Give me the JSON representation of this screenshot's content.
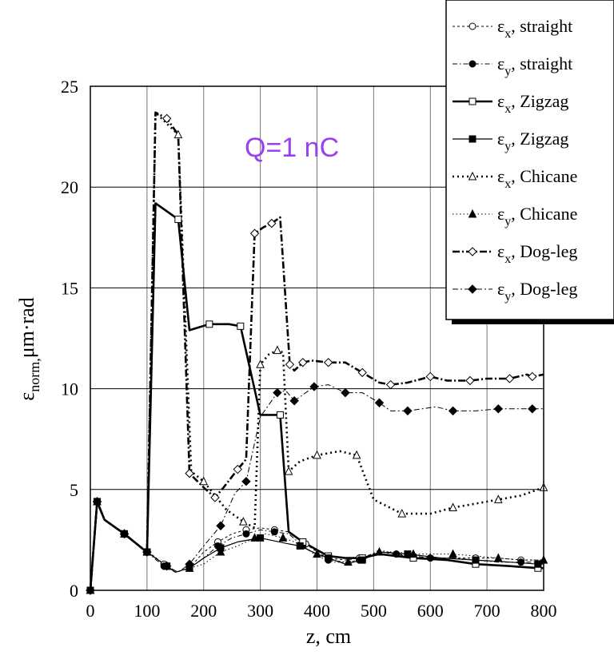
{
  "chart_data": {
    "type": "line",
    "title": "",
    "annotation": "Q=1 nC",
    "annotation_color": "#9a40ee",
    "xlabel": "z, cm",
    "ylabel_prefix": "ε",
    "ylabel_sub": "norm,",
    "ylabel_suffix": "μm·rad",
    "xlim": [
      0,
      800
    ],
    "ylim": [
      0,
      25
    ],
    "xticks": [
      "0",
      "100",
      "200",
      "300",
      "400",
      "500",
      "600",
      "700",
      "800"
    ],
    "yticks": [
      "0",
      "5",
      "10",
      "15",
      "20",
      "25"
    ],
    "grid": true,
    "legend_position": "top-right",
    "series": [
      {
        "name_sym": "ε",
        "name_sub": "x",
        "name_rest": ", straight",
        "color": "#000000",
        "dash": "3,3",
        "width": 1,
        "marker": "circle-open",
        "x": [
          0,
          12,
          25,
          60,
          95,
          100,
          112,
          130,
          150,
          175,
          200,
          225,
          250,
          275,
          300,
          325,
          350,
          380,
          400,
          420,
          450,
          475,
          510,
          540,
          570,
          600,
          640,
          680,
          720,
          760,
          800
        ],
        "y": [
          0,
          4.4,
          3.5,
          2.8,
          2.0,
          1.9,
          1.7,
          1.3,
          0.9,
          1.1,
          1.9,
          2.4,
          2.8,
          3.0,
          3.1,
          3.0,
          2.9,
          2.3,
          1.9,
          1.6,
          1.5,
          1.6,
          1.9,
          1.8,
          1.6,
          1.6,
          1.6,
          1.6,
          1.6,
          1.5,
          1.5
        ]
      },
      {
        "name_sym": "ε",
        "name_sub": "y",
        "name_rest": ", straight",
        "color": "#000000",
        "dash": "6,3,1.5,3",
        "width": 1,
        "marker": "circle-filled",
        "x": [
          0,
          12,
          25,
          60,
          95,
          100,
          112,
          130,
          150,
          175,
          200,
          225,
          250,
          275,
          300,
          325,
          350,
          375,
          400,
          420,
          450,
          475,
          510,
          540,
          570,
          600,
          640,
          680,
          720,
          760,
          800
        ],
        "y": [
          0,
          4.4,
          3.5,
          2.8,
          2.0,
          1.9,
          1.6,
          1.2,
          0.9,
          1.1,
          1.6,
          2.2,
          2.6,
          2.8,
          3.0,
          2.9,
          2.8,
          2.2,
          1.7,
          1.5,
          1.4,
          1.5,
          2.0,
          1.8,
          1.7,
          1.6,
          1.6,
          1.5,
          1.4,
          1.4,
          1.4
        ]
      },
      {
        "name_sym": "ε",
        "name_sub": "x",
        "name_rest": ", Zigzag",
        "color": "#000000",
        "dash": "",
        "width": 2.6,
        "marker": "square-open",
        "x": [
          0,
          12,
          25,
          60,
          95,
          100,
          115,
          155,
          175,
          210,
          245,
          265,
          300,
          335,
          350,
          375,
          400,
          420,
          450,
          480,
          510,
          570,
          630,
          680,
          740,
          790,
          800
        ],
        "y": [
          0,
          4.4,
          3.5,
          2.8,
          2.0,
          1.9,
          19.2,
          18.4,
          12.9,
          13.2,
          13.2,
          13.1,
          8.7,
          8.7,
          2.9,
          2.4,
          2.0,
          1.7,
          1.6,
          1.6,
          1.8,
          1.6,
          1.5,
          1.3,
          1.2,
          1.1,
          1.1
        ]
      },
      {
        "name_sym": "ε",
        "name_sub": "y",
        "name_rest": ", Zigzag",
        "color": "#000000",
        "dash": "",
        "width": 1.2,
        "marker": "square-filled",
        "x": [
          0,
          12,
          25,
          60,
          95,
          100,
          115,
          135,
          150,
          175,
          200,
          230,
          260,
          300,
          350,
          370,
          400,
          420,
          450,
          480,
          510,
          560,
          620,
          680,
          740,
          790,
          800
        ],
        "y": [
          0,
          4.4,
          3.5,
          2.8,
          2.0,
          1.9,
          1.6,
          1.2,
          0.9,
          1.1,
          1.6,
          2.1,
          2.4,
          2.6,
          2.3,
          2.2,
          1.8,
          1.6,
          1.3,
          1.5,
          1.9,
          1.8,
          1.6,
          1.5,
          1.4,
          1.3,
          1.3
        ]
      },
      {
        "name_sym": "ε",
        "name_sub": "x",
        "name_rest": ", Chicane",
        "color": "#000000",
        "dash": "2,4",
        "width": 2.6,
        "marker": "triangle-open",
        "x": [
          0,
          12,
          25,
          60,
          95,
          100,
          115,
          155,
          178,
          200,
          240,
          270,
          290,
          300,
          315,
          330,
          340,
          350,
          370,
          400,
          440,
          470,
          500,
          550,
          600,
          640,
          680,
          720,
          760,
          800
        ],
        "y": [
          0,
          4.4,
          3.5,
          2.8,
          2.0,
          1.9,
          23.7,
          22.6,
          5.9,
          5.4,
          4.0,
          3.4,
          3.1,
          11.2,
          11.7,
          11.9,
          11.8,
          5.9,
          6.4,
          6.7,
          6.9,
          6.7,
          4.5,
          3.8,
          3.8,
          4.1,
          4.3,
          4.5,
          4.7,
          5.1
        ]
      },
      {
        "name_sym": "ε",
        "name_sub": "y",
        "name_rest": ", Chicane",
        "color": "#000000",
        "dash": "1.5,3",
        "width": 1,
        "marker": "triangle-filled",
        "x": [
          0,
          12,
          25,
          60,
          95,
          100,
          115,
          135,
          150,
          175,
          200,
          230,
          260,
          290,
          310,
          340,
          360,
          400,
          430,
          455,
          475,
          510,
          540,
          570,
          600,
          640,
          680,
          720,
          760,
          800
        ],
        "y": [
          0,
          4.4,
          3.5,
          2.8,
          2.0,
          1.9,
          1.6,
          1.2,
          0.9,
          1.1,
          1.3,
          1.9,
          2.2,
          2.6,
          2.8,
          2.6,
          2.4,
          1.8,
          1.4,
          1.4,
          1.5,
          1.9,
          1.9,
          1.8,
          1.8,
          1.8,
          1.7,
          1.6,
          1.5,
          1.5
        ]
      },
      {
        "name_sym": "ε",
        "name_sub": "x",
        "name_rest": ", Dog-leg",
        "color": "#000000",
        "dash": "9,3,2,3",
        "width": 2.6,
        "marker": "diamond-open",
        "x": [
          0,
          12,
          25,
          60,
          95,
          100,
          115,
          135,
          155,
          175,
          200,
          220,
          235,
          260,
          275,
          290,
          305,
          320,
          335,
          352,
          360,
          375,
          390,
          420,
          450,
          480,
          510,
          530,
          560,
          600,
          630,
          670,
          700,
          740,
          770,
          780,
          800
        ],
        "y": [
          0,
          4.4,
          3.5,
          2.8,
          2.0,
          1.9,
          23.7,
          23.4,
          22.6,
          5.8,
          5.1,
          4.6,
          5.1,
          6.0,
          6.5,
          17.7,
          18.0,
          18.2,
          18.5,
          11.2,
          10.9,
          11.3,
          11.4,
          11.3,
          11.3,
          10.8,
          10.3,
          10.2,
          10.3,
          10.6,
          10.4,
          10.4,
          10.5,
          10.5,
          10.7,
          10.6,
          10.7
        ]
      },
      {
        "name_sym": "ε",
        "name_sub": "y",
        "name_rest": ", Dog-leg",
        "color": "#000000",
        "dash": "7,3,2,3",
        "width": 1,
        "marker": "diamond-filled",
        "x": [
          0,
          12,
          25,
          60,
          95,
          100,
          115,
          135,
          155,
          175,
          200,
          230,
          255,
          275,
          300,
          330,
          345,
          360,
          375,
          395,
          420,
          450,
          480,
          510,
          530,
          560,
          610,
          640,
          680,
          720,
          760,
          780,
          800
        ],
        "y": [
          0,
          4.4,
          3.5,
          2.8,
          2.0,
          1.9,
          1.6,
          1.2,
          0.9,
          1.3,
          2.2,
          3.2,
          4.8,
          5.4,
          8.6,
          9.8,
          9.9,
          9.4,
          9.7,
          10.1,
          10.2,
          9.8,
          9.8,
          9.3,
          8.9,
          8.9,
          9.1,
          8.9,
          8.9,
          9.0,
          9.0,
          9.0,
          9.0
        ]
      }
    ]
  }
}
